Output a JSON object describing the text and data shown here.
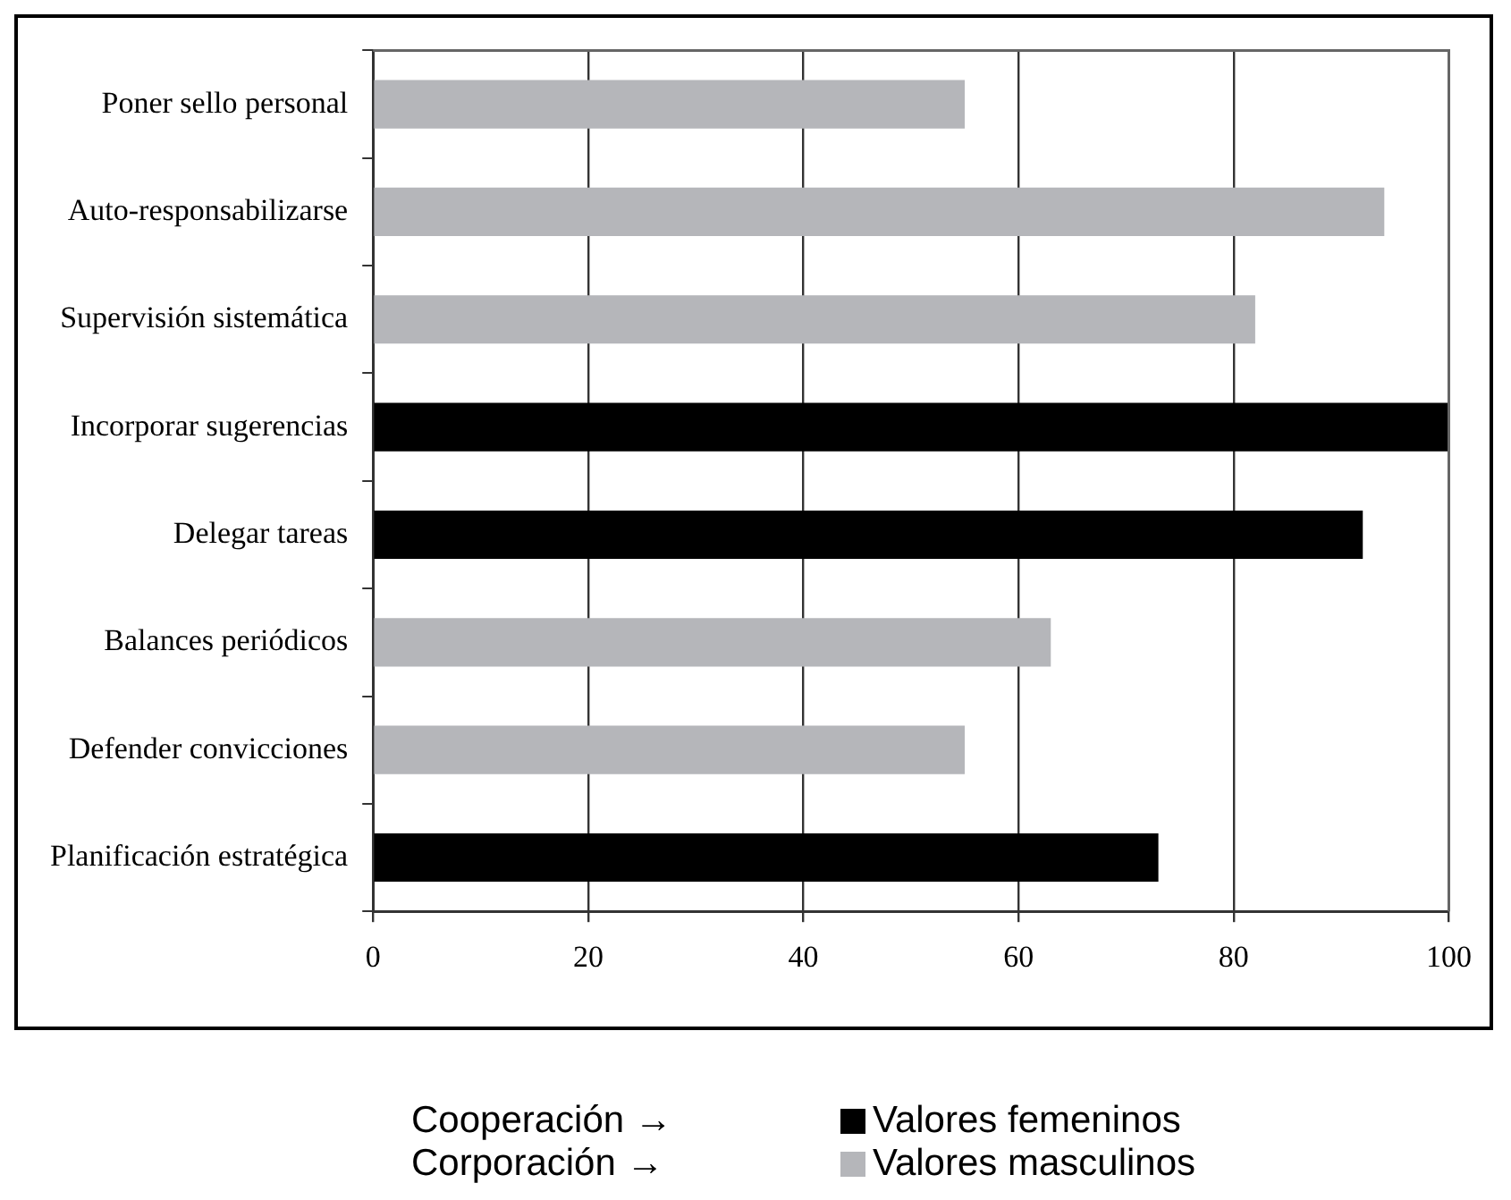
{
  "chart_data": {
    "type": "bar",
    "orientation": "horizontal",
    "categories": [
      "Poner sello personal",
      "Auto-responsabilizarse",
      "Supervisión sistemática",
      "Incorporar sugerencias",
      "Delegar tareas",
      "Balances periódicos",
      "Defender convicciones",
      "Planificación estratégica"
    ],
    "series": [
      {
        "name": "Valores femeninos",
        "color": "#000000",
        "values": [
          null,
          null,
          null,
          100,
          92,
          null,
          null,
          73
        ]
      },
      {
        "name": "Valores masculinos",
        "color": "#b5b6ba",
        "values": [
          55,
          94,
          82,
          null,
          null,
          63,
          55,
          null
        ]
      }
    ],
    "xlim": [
      0,
      100
    ],
    "xticks": [
      0,
      20,
      40,
      60,
      80,
      100
    ],
    "grid": "x",
    "legend": "bottom",
    "annotations": [
      "Cooperación →",
      "Corporación →"
    ]
  }
}
